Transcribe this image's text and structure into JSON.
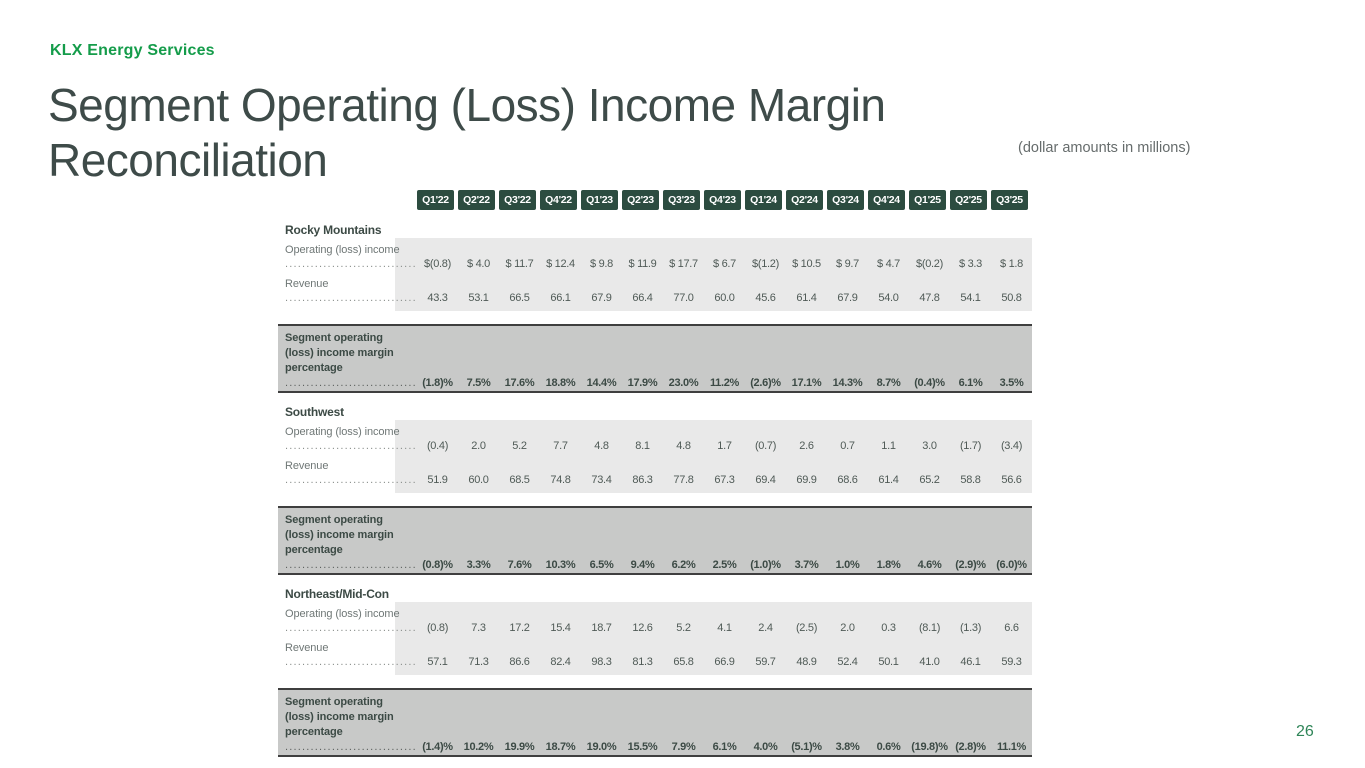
{
  "brand": "KLX Energy Services",
  "title": {
    "line1": "Segment Operating (Loss) Income Margin",
    "line2": "Reconciliation"
  },
  "subtitle": "(dollar amounts in millions)",
  "page_number": "26",
  "colors": {
    "brand_green": "#149c4a",
    "title_gray_green": "#3e4b49",
    "header_chip_green": "#2c4c40",
    "light_band": "#e9e9e9",
    "dark_band": "#c8c9c8",
    "page_number_green": "#2f8558"
  },
  "table": {
    "quarters": [
      "Q1'22",
      "Q2'22",
      "Q3'22",
      "Q4'22",
      "Q1'23",
      "Q2'23",
      "Q3'23",
      "Q4'23",
      "Q1'24",
      "Q2'24",
      "Q3'24",
      "Q4'24",
      "Q1'25",
      "Q2'25",
      "Q3'25"
    ],
    "margin_label": "Segment operating (loss) income margin percentage",
    "segments": [
      {
        "name": "Rocky Mountains",
        "rows": [
          {
            "label": "Operating (loss) income",
            "values": [
              "$(0.8)",
              "$ 4.0",
              "$ 11.7",
              "$ 12.4",
              "$ 9.8",
              "$ 11.9",
              "$ 17.7",
              "$ 6.7",
              "$(1.2)",
              "$ 10.5",
              "$ 9.7",
              "$ 4.7",
              "$(0.2)",
              "$ 3.3",
              "$ 1.8"
            ]
          },
          {
            "label": "Revenue",
            "values": [
              "43.3",
              "53.1",
              "66.5",
              "66.1",
              "67.9",
              "66.4",
              "77.0",
              "60.0",
              "45.6",
              "61.4",
              "67.9",
              "54.0",
              "47.8",
              "54.1",
              "50.8"
            ]
          }
        ],
        "margin_values": [
          "(1.8)%",
          "7.5%",
          "17.6%",
          "18.8%",
          "14.4%",
          "17.9%",
          "23.0%",
          "11.2%",
          "(2.6)%",
          "17.1%",
          "14.3%",
          "8.7%",
          "(0.4)%",
          "6.1%",
          "3.5%"
        ]
      },
      {
        "name": "Southwest",
        "rows": [
          {
            "label": "Operating (loss) income",
            "values": [
              "(0.4)",
              "2.0",
              "5.2",
              "7.7",
              "4.8",
              "8.1",
              "4.8",
              "1.7",
              "(0.7)",
              "2.6",
              "0.7",
              "1.1",
              "3.0",
              "(1.7)",
              "(3.4)"
            ]
          },
          {
            "label": "Revenue",
            "values": [
              "51.9",
              "60.0",
              "68.5",
              "74.8",
              "73.4",
              "86.3",
              "77.8",
              "67.3",
              "69.4",
              "69.9",
              "68.6",
              "61.4",
              "65.2",
              "58.8",
              "56.6"
            ]
          }
        ],
        "margin_values": [
          "(0.8)%",
          "3.3%",
          "7.6%",
          "10.3%",
          "6.5%",
          "9.4%",
          "6.2%",
          "2.5%",
          "(1.0)%",
          "3.7%",
          "1.0%",
          "1.8%",
          "4.6%",
          "(2.9)%",
          "(6.0)%"
        ]
      },
      {
        "name": "Northeast/Mid-Con",
        "rows": [
          {
            "label": "Operating (loss) income",
            "values": [
              "(0.8)",
              "7.3",
              "17.2",
              "15.4",
              "18.7",
              "12.6",
              "5.2",
              "4.1",
              "2.4",
              "(2.5)",
              "2.0",
              "0.3",
              "(8.1)",
              "(1.3)",
              "6.6"
            ]
          },
          {
            "label": "Revenue",
            "values": [
              "57.1",
              "71.3",
              "86.6",
              "82.4",
              "98.3",
              "81.3",
              "65.8",
              "66.9",
              "59.7",
              "48.9",
              "52.4",
              "50.1",
              "41.0",
              "46.1",
              "59.3"
            ]
          }
        ],
        "margin_values": [
          "(1.4)%",
          "10.2%",
          "19.9%",
          "18.7%",
          "19.0%",
          "15.5%",
          "7.9%",
          "6.1%",
          "4.0%",
          "(5.1)%",
          "3.8%",
          "0.6%",
          "(19.8)%",
          "(2.8)%",
          "11.1%"
        ]
      }
    ]
  }
}
